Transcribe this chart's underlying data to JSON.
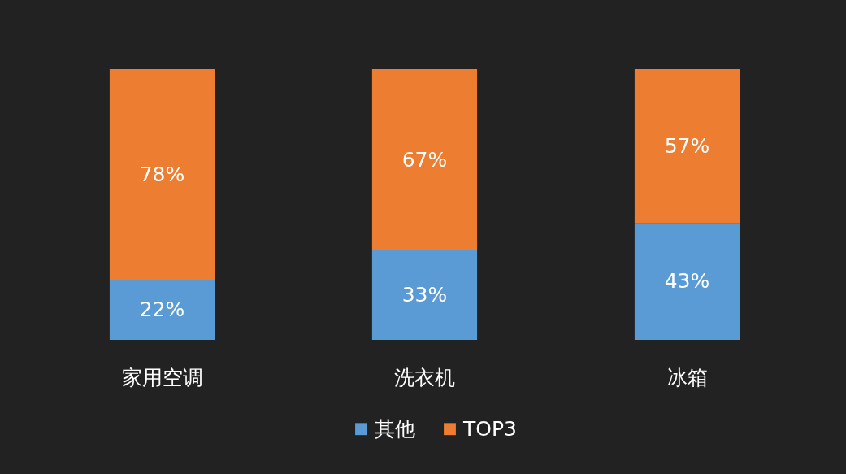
{
  "chart_data": {
    "type": "bar",
    "stacked": true,
    "categories": [
      "家用空调",
      "洗衣机",
      "冰箱"
    ],
    "series": [
      {
        "name": "其他",
        "color": "#5b9bd5",
        "values": [
          22,
          33,
          43
        ],
        "value_labels": [
          "22%",
          "33%",
          "43%"
        ]
      },
      {
        "name": "TOP3",
        "color": "#ed7d31",
        "values": [
          78,
          67,
          57
        ],
        "value_labels": [
          "78%",
          "67%",
          "57%"
        ]
      }
    ],
    "legend": "bottom"
  }
}
